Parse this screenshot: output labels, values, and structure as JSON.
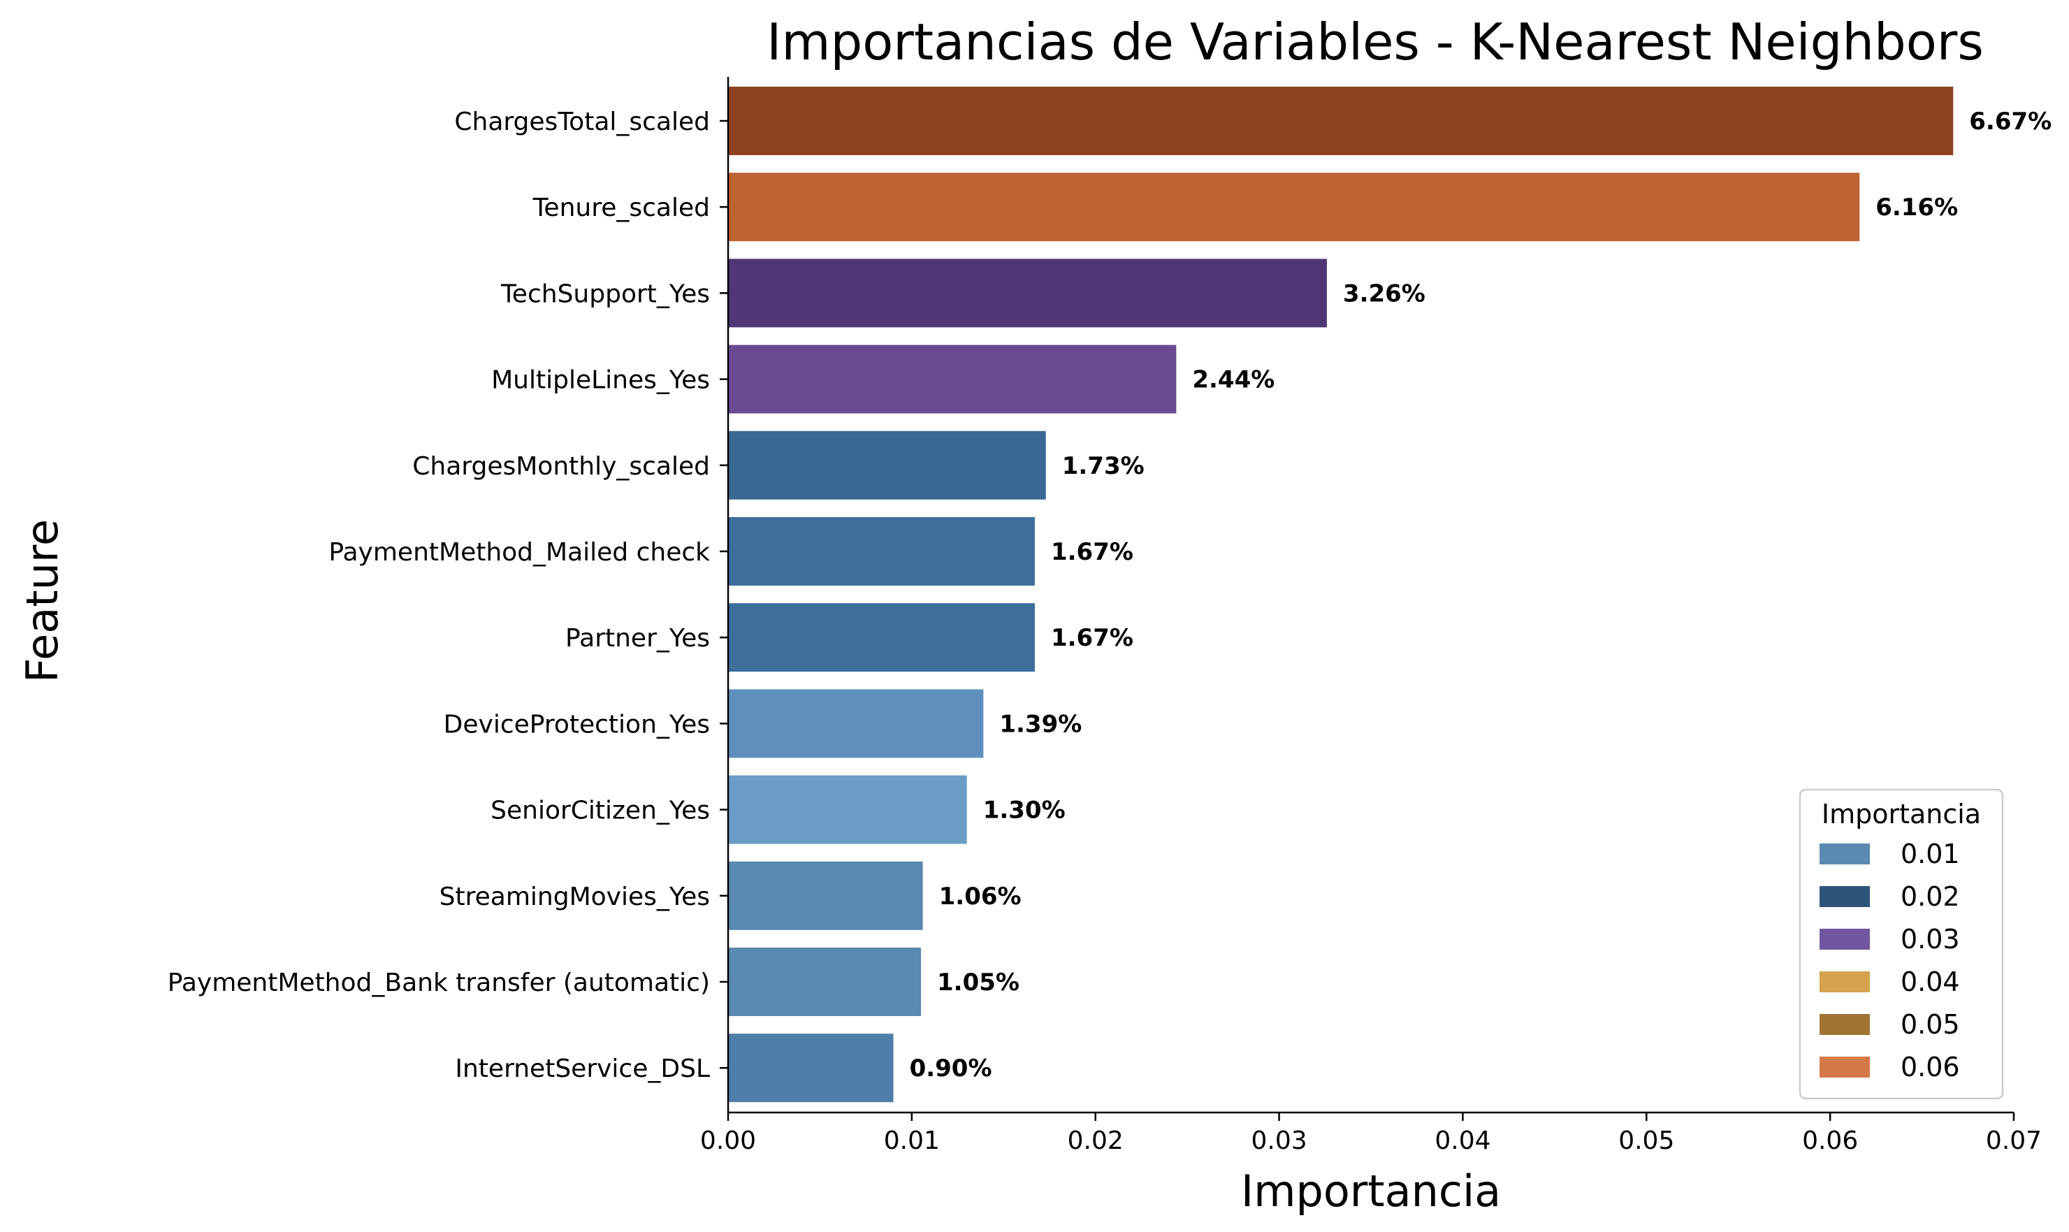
{
  "chart_data": {
    "type": "bar",
    "orientation": "horizontal",
    "title": "Importancias de Variables - K-Nearest Neighbors",
    "xlabel": "Importancia",
    "ylabel": "Feature",
    "xlim": [
      0,
      0.07
    ],
    "x_ticks": [
      "0.00",
      "0.01",
      "0.02",
      "0.03",
      "0.04",
      "0.05",
      "0.06",
      "0.07"
    ],
    "grid": false,
    "bars": [
      {
        "name": "ChargesTotal_scaled",
        "value": 0.0667,
        "label": "6.67%",
        "color": "#8f4220"
      },
      {
        "name": "Tenure_scaled",
        "value": 0.0616,
        "label": "6.16%",
        "color": "#bd6334"
      },
      {
        "name": "TechSupport_Yes",
        "value": 0.0326,
        "label": "3.26%",
        "color": "#4f3674"
      },
      {
        "name": "MultipleLines_Yes",
        "value": 0.0244,
        "label": "2.44%",
        "color": "#6b4a94"
      },
      {
        "name": "ChargesMonthly_scaled",
        "value": 0.0173,
        "label": "1.73%",
        "color": "#3a6894"
      },
      {
        "name": "PaymentMethod_Mailed check",
        "value": 0.0167,
        "label": "1.67%",
        "color": "#3d6e9c"
      },
      {
        "name": "Partner_Yes",
        "value": 0.0167,
        "label": "1.67%",
        "color": "#3d6e9c"
      },
      {
        "name": "DeviceProtection_Yes",
        "value": 0.0139,
        "label": "1.39%",
        "color": "#5f90bd"
      },
      {
        "name": "SeniorCitizen_Yes",
        "value": 0.013,
        "label": "1.30%",
        "color": "#6a9cc6"
      },
      {
        "name": "StreamingMovies_Yes",
        "value": 0.0106,
        "label": "1.06%",
        "color": "#5a89b1"
      },
      {
        "name": "PaymentMethod_Bank transfer (automatic)",
        "value": 0.0105,
        "label": "1.05%",
        "color": "#5a89b1"
      },
      {
        "name": "InternetService_DSL",
        "value": 0.009,
        "label": "0.90%",
        "color": "#4f7fa8"
      }
    ],
    "legend": {
      "title": "Importancia",
      "placement": "bottom-right",
      "entries": [
        {
          "label": "0.01",
          "color": "#5a89b1"
        },
        {
          "label": "0.02",
          "color": "#2f5479"
        },
        {
          "label": "0.03",
          "color": "#7257a0"
        },
        {
          "label": "0.04",
          "color": "#d6a24e"
        },
        {
          "label": "0.05",
          "color": "#a27434"
        },
        {
          "label": "0.06",
          "color": "#d4794a"
        }
      ]
    }
  }
}
